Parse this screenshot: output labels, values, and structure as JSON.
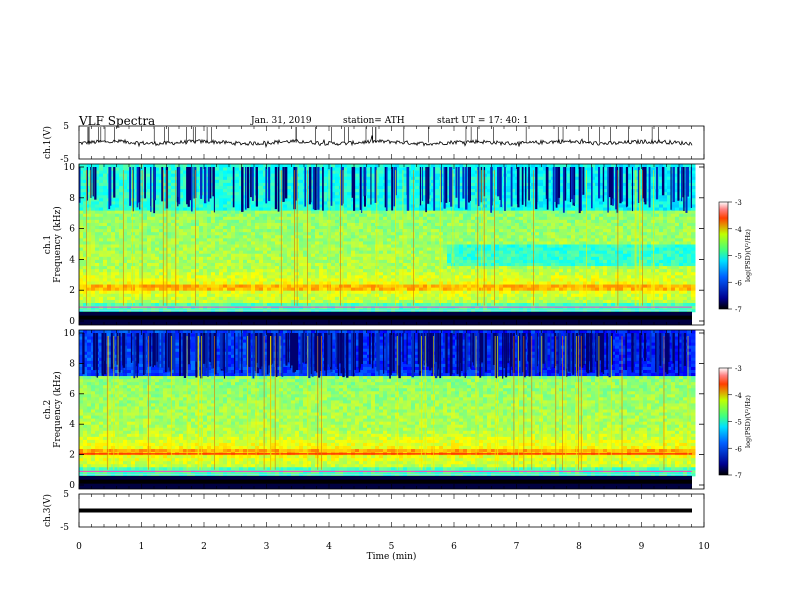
{
  "header": {
    "title": "VLF  Spectra",
    "date": "Jan. 31, 2019",
    "station": "station= ATH",
    "start": "start  UT  =    17: 40: 1"
  },
  "chart_data": [
    {
      "type": "line",
      "ylabel": "ch.1(V)",
      "ylim": [
        -5,
        5
      ],
      "yticks": [
        "5",
        "-5"
      ],
      "xlim": [
        0,
        10
      ],
      "description_values": {
        "baseline_V": 0
      }
    },
    {
      "type": "heatmap",
      "ylabel_line1": "ch.1",
      "ylabel_line2": "Frequency  (kHz)",
      "ylim": [
        0,
        10
      ],
      "yticks": [
        "0",
        "2",
        "4",
        "6",
        "8",
        "10"
      ],
      "colorbar": {
        "label": "log(PSD)(V²/Hz)",
        "range": [
          -7,
          -3
        ],
        "ticks": [
          "-3",
          "-4",
          "-5",
          "-6",
          "-7"
        ]
      }
    },
    {
      "type": "heatmap",
      "ylabel_line1": "ch.2",
      "ylabel_line2": "Frequency  (kHz)",
      "ylim": [
        0,
        10
      ],
      "yticks": [
        "0",
        "2",
        "4",
        "6",
        "8",
        "10"
      ],
      "colorbar": {
        "label": "log(PSD)(V²/Hz)",
        "range": [
          -7,
          -3
        ],
        "ticks": [
          "-3",
          "-4",
          "-5",
          "-6",
          "-7"
        ]
      }
    },
    {
      "type": "line",
      "ylabel": "ch.3(V)",
      "ylim": [
        -5,
        5
      ],
      "yticks": [
        "5",
        "-5"
      ],
      "xlim": [
        0,
        10
      ],
      "xlabel": "Time  (min)",
      "xticks": [
        "0",
        "1",
        "2",
        "3",
        "4",
        "5",
        "6",
        "7",
        "8",
        "9",
        "10"
      ]
    }
  ]
}
